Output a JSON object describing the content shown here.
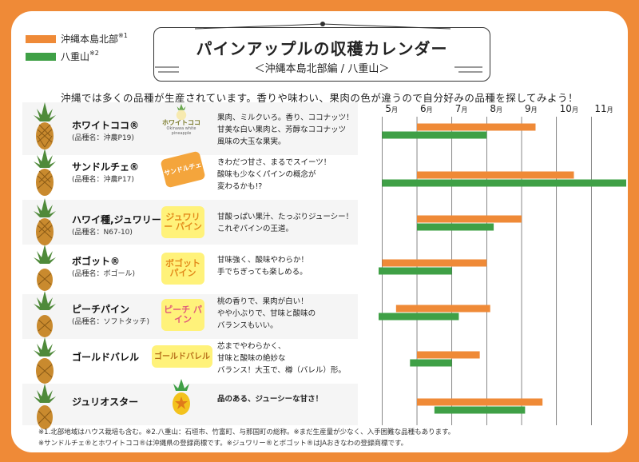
{
  "legend": {
    "okinawa_north": {
      "label": "沖縄本島北部",
      "note": "※1",
      "color": "#ef8a37"
    },
    "yaeyama": {
      "label": "八重山",
      "note": "※2",
      "color": "#3fa046"
    }
  },
  "title": "パインアップルの収穫カレンダー",
  "subtitle": "＜沖縄本島北部編 / 八重山＞",
  "intro": "沖縄では多くの品種が生産されています。香りや味わい、果肉の色が違うので自分好みの品種を探してみよう！",
  "month_unit": "月",
  "varieties": [
    {
      "name": "ホワイトココ®",
      "variety": "(品種名：沖農P19)",
      "logo": "ホワイトココ",
      "logo_sub": "Okinawa white pineapple",
      "desc": [
        "果肉、ミルクいろ。香り、ココナッツ！",
        "甘美な白い果肉と、芳醇なココナッツ",
        "風味の大玉な果実。"
      ]
    },
    {
      "name": "サンドルチェ®",
      "variety": "(品種名：沖農P17)",
      "logo": "サンドルチェ",
      "logo_sub": "",
      "desc": [
        "きわだつ甘さ、まるでスイーツ！",
        "酸味も少なくパインの概念が",
        "変わるかも!?"
      ]
    },
    {
      "name": "ハワイ種,ジュワリー®",
      "variety": "(品種名：N67-10)",
      "logo": "ジュワリー パイン",
      "logo_sub": "",
      "desc": [
        "甘酸っぱい果汁、たっぷりジューシー！",
        "これぞパインの王道。"
      ]
    },
    {
      "name": "ボゴット®",
      "variety": "(品種名：ボゴール)",
      "logo": "ボゴット パイン",
      "logo_sub": "",
      "desc": [
        "甘味強く、酸味やわらか！",
        "手でちぎっても楽しめる。"
      ]
    },
    {
      "name": "ピーチパイン",
      "variety": "(品種名：ソフトタッチ)",
      "logo": "ピーチ パイン",
      "logo_sub": "",
      "desc": [
        "桃の香りで、果肉が白い！",
        "やや小ぶりで、甘味と酸味の",
        "バランスもいい。"
      ]
    },
    {
      "name": "ゴールドバレル",
      "variety": "",
      "logo": "ゴールドバレル",
      "logo_sub": "",
      "desc": [
        "芯までやわらかく、",
        "甘味と酸味の絶妙な",
        "バランス！大玉で、樽（バレル）形。"
      ]
    },
    {
      "name": "ジュリオスター",
      "variety": "",
      "logo": "",
      "logo_sub": "",
      "desc": [
        "品のある、ジューシーな甘さ！"
      ]
    }
  ],
  "footnotes": [
    "※1.北部地域はハウス栽培も含む。※2.八重山：石垣市、竹富町、与那国町の総称。※まだ生産量が少なく、入手困難な品種もあります。",
    "※サンドルチェ®とホワイトココ®は沖縄県の登録商標です。※ジュワリー®とボゴット®はJAおきなわの登録商標です。"
  ],
  "chart_data": {
    "type": "bar",
    "orientation": "horizontal",
    "subtype": "gantt",
    "x_unit": "月",
    "x_ticks": [
      "5",
      "6",
      "7",
      "8",
      "9",
      "10",
      "11"
    ],
    "x_range": [
      5,
      12
    ],
    "categories": [
      "ホワイトココ®",
      "サンドルチェ®",
      "ハワイ種,ジュワリー®",
      "ボゴット®",
      "ピーチパイン",
      "ゴールドバレル",
      "ジュリオスター"
    ],
    "series": [
      {
        "name": "沖縄本島北部",
        "color": "#ef8a37",
        "ranges": [
          [
            6.0,
            9.4
          ],
          [
            6.0,
            10.5
          ],
          [
            6.0,
            9.0
          ],
          [
            5.0,
            8.0
          ],
          [
            5.4,
            8.1
          ],
          [
            6.0,
            7.8
          ],
          [
            6.0,
            9.6
          ]
        ]
      },
      {
        "name": "八重山",
        "color": "#3fa046",
        "ranges": [
          [
            5.0,
            8.0
          ],
          [
            5.0,
            12.0
          ],
          [
            6.0,
            8.2
          ],
          [
            4.9,
            7.0
          ],
          [
            4.9,
            7.2
          ],
          [
            5.8,
            7.0
          ],
          [
            6.5,
            9.1
          ]
        ]
      }
    ]
  }
}
